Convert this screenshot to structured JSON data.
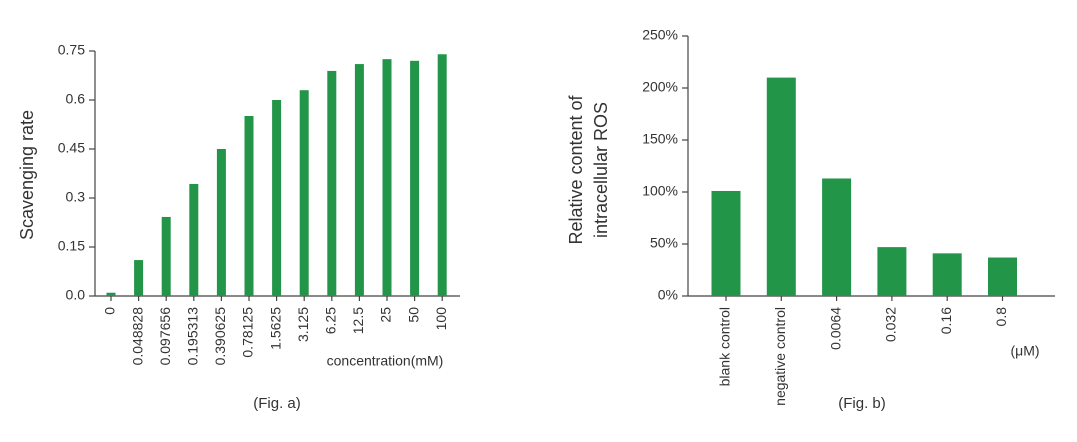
{
  "chart_data": [
    {
      "type": "bar",
      "ylabel": "Scavenging rate",
      "xlabel": "concentration(mM)",
      "caption": "(Fig. a)",
      "categories": [
        "0",
        "0.048828",
        "0.097656",
        "0.195313",
        "0.390625",
        "0.78125",
        "1.5625",
        "3.125",
        "6.25",
        "12.5",
        "25",
        "50",
        "100"
      ],
      "values": [
        0.01,
        0.11,
        0.242,
        0.343,
        0.45,
        0.551,
        0.6,
        0.63,
        0.689,
        0.71,
        0.725,
        0.72,
        0.74
      ],
      "color": "#229548",
      "ylim": [
        0,
        0.75
      ],
      "yticks": [
        {
          "value": 0,
          "label": "0.0"
        },
        0.15,
        0.3,
        0.45,
        0.6,
        0.75
      ]
    },
    {
      "type": "bar",
      "ylabel": [
        "Relative content of",
        "intracellular ROS"
      ],
      "xlabel": "(μM)",
      "caption": "(Fig. b)",
      "categories": [
        "blank control",
        "negative control",
        "0.0064",
        "0.032",
        "0.16",
        "0.8"
      ],
      "values": [
        101,
        210,
        113,
        47,
        41,
        37
      ],
      "color": "#229548",
      "ylim": [
        0,
        250
      ],
      "yticks": [
        {
          "value": 0,
          "label": "0%"
        },
        {
          "value": 50,
          "label": "50%"
        },
        {
          "value": 100,
          "label": "100%"
        },
        {
          "value": 150,
          "label": "150%"
        },
        {
          "value": 200,
          "label": "200%"
        },
        {
          "value": 250,
          "label": "250%"
        }
      ]
    }
  ]
}
